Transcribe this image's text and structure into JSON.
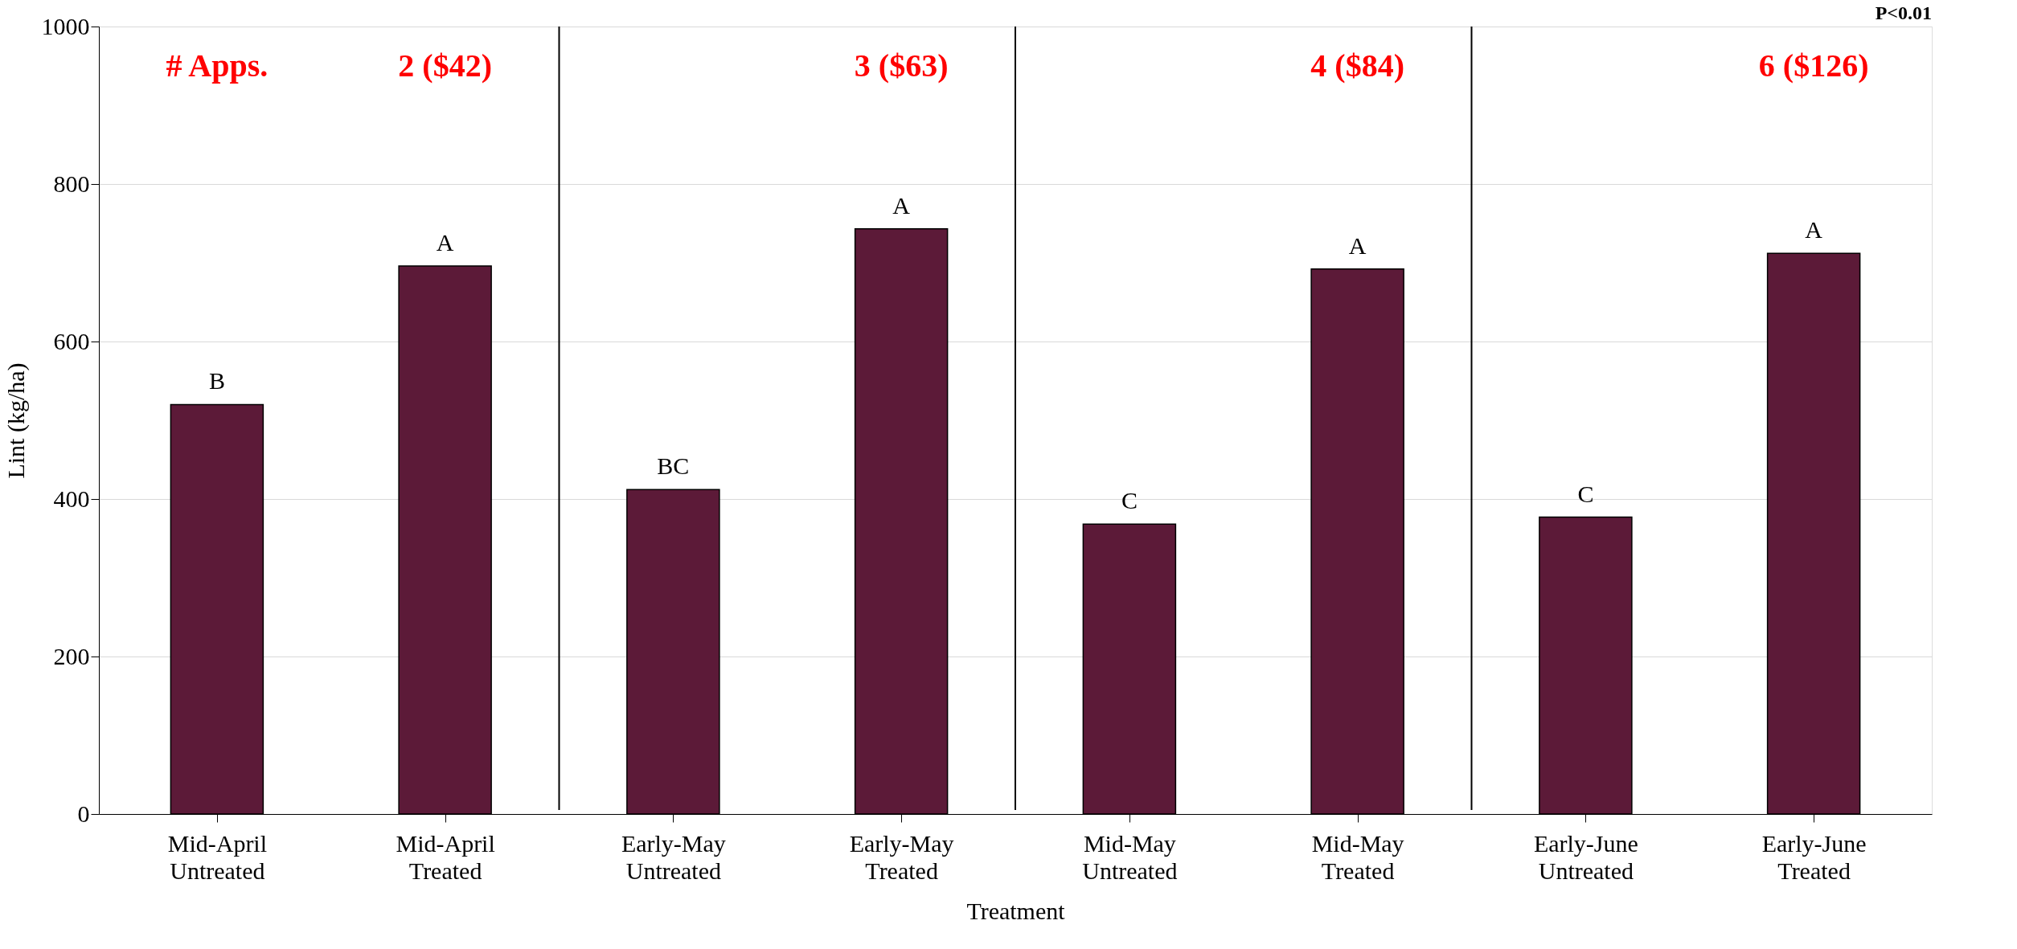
{
  "chart_data": {
    "type": "bar",
    "xlabel": "Treatment",
    "ylabel": "Lint (kg/ha)",
    "categories": [
      "Mid-April\nUntreated",
      "Mid-April\nTreated",
      "Early-May\nUntreated",
      "Early-May\nTreated",
      "Mid-May\nUntreated",
      "Mid-May\nTreated",
      "Early-June\nUntreated",
      "Early-June\nTreated"
    ],
    "values": [
      520,
      696,
      412,
      743,
      368,
      692,
      377,
      712
    ],
    "color": "#5c1a38",
    "value_labels": [
      "B",
      "A",
      "BC",
      "A",
      "C",
      "A",
      "C",
      "A"
    ],
    "ylim": [
      0,
      1000
    ],
    "yticks": [
      0,
      200,
      400,
      600,
      800,
      1000
    ],
    "grid": "y",
    "annotations": [
      "# Apps.",
      "2 ($42)",
      "3 ($63)",
      "4 ($84)",
      "6 ($126)",
      "P<0.01"
    ]
  }
}
